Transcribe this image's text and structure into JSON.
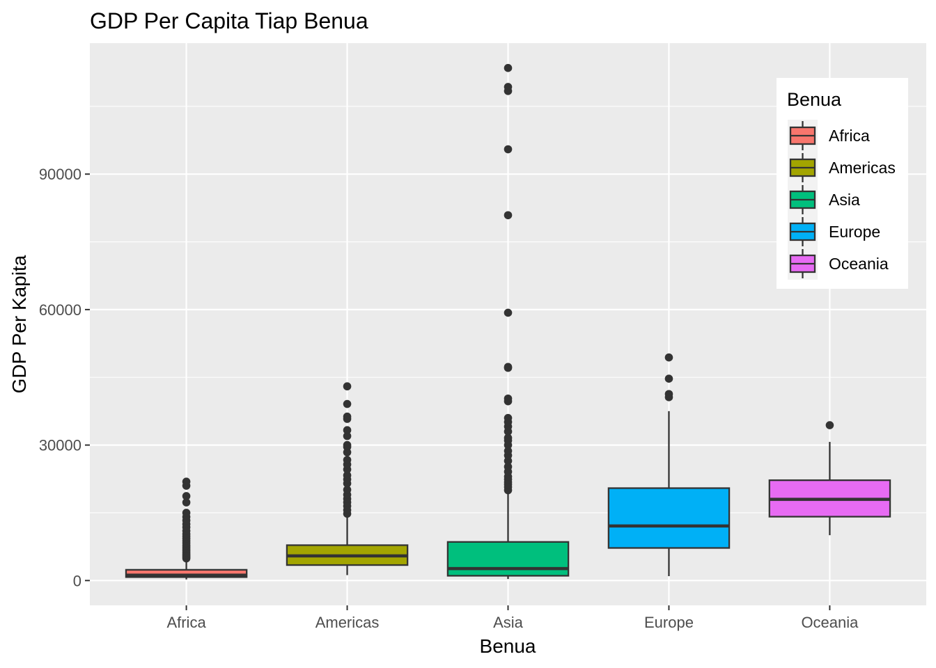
{
  "chart_data": {
    "type": "box",
    "title": "GDP Per Capita Tiap Benua",
    "xlabel": "Benua",
    "ylabel": "GDP Per Kapita",
    "categories": [
      "Africa",
      "Americas",
      "Asia",
      "Europe",
      "Oceania"
    ],
    "ylim": [
      -5500,
      119000
    ],
    "yticks": [
      0,
      30000,
      60000,
      90000
    ],
    "ytick_labels": [
      "0",
      "30000",
      "60000",
      "90000"
    ],
    "grid": true,
    "legend": {
      "title": "Benua",
      "position": "top-right",
      "entries": [
        "Africa",
        "Americas",
        "Asia",
        "Europe",
        "Oceania"
      ]
    },
    "series": [
      {
        "name": "Africa",
        "color": "#F8766D",
        "min": 241,
        "q1": 761,
        "median": 1192,
        "q3": 2377,
        "max": 4770,
        "outliers": [
          4900,
          5200,
          5500,
          5800,
          6200,
          6600,
          7000,
          7400,
          7800,
          8300,
          8800,
          9300,
          9800,
          10300,
          11000,
          11800,
          12500,
          13300,
          14100,
          15000,
          17300,
          18700,
          21000,
          21900
        ]
      },
      {
        "name": "Americas",
        "color": "#A3A500",
        "min": 1202,
        "q1": 3428,
        "median": 5466,
        "q3": 7830,
        "max": 14500,
        "outliers": [
          14800,
          15600,
          16500,
          17300,
          18100,
          19000,
          20100,
          21500,
          22400,
          23300,
          24600,
          25700,
          26700,
          28400,
          29600,
          30000,
          32000,
          33300,
          35800,
          36300,
          39100,
          43000
        ]
      },
      {
        "name": "Asia",
        "color": "#00BF7D",
        "min": 331,
        "q1": 1057,
        "median": 2647,
        "q3": 8549,
        "max": 19900,
        "outliers": [
          20000,
          20700,
          21300,
          21800,
          22400,
          23000,
          24100,
          25200,
          26500,
          27700,
          28700,
          30000,
          31000,
          31600,
          33000,
          34100,
          35100,
          36000,
          39700,
          40300,
          47100,
          47300,
          59300,
          80900,
          95500,
          108400,
          109300,
          113500
        ]
      },
      {
        "name": "Europe",
        "color": "#00B0F6",
        "min": 974,
        "q1": 7213,
        "median": 12082,
        "q3": 20461,
        "max": 37500,
        "outliers": [
          40600,
          41300,
          44700,
          49400
        ]
      },
      {
        "name": "Oceania",
        "color": "#E76BF3",
        "min": 10040,
        "q1": 14142,
        "median": 17983,
        "q3": 22214,
        "max": 30700,
        "outliers": [
          34400
        ]
      }
    ]
  }
}
